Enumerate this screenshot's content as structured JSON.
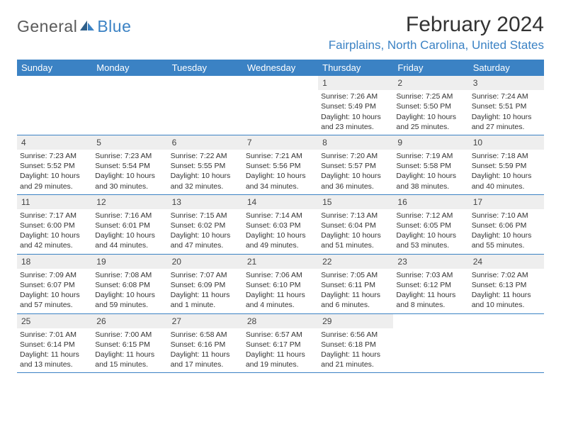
{
  "logo": {
    "general": "General",
    "blue": "Blue"
  },
  "title": "February 2024",
  "location": "Fairplains, North Carolina, United States",
  "colors": {
    "brand_blue": "#3b82c4",
    "logo_gray": "#5a5a5a",
    "header_bg": "#3b82c4",
    "header_text": "#ffffff",
    "daynum_bg": "#eeeeee",
    "text": "#333333",
    "border": "#3b82c4"
  },
  "day_headers": [
    "Sunday",
    "Monday",
    "Tuesday",
    "Wednesday",
    "Thursday",
    "Friday",
    "Saturday"
  ],
  "weeks": [
    [
      {
        "num": "",
        "sunrise": "",
        "sunset": "",
        "daylight": ""
      },
      {
        "num": "",
        "sunrise": "",
        "sunset": "",
        "daylight": ""
      },
      {
        "num": "",
        "sunrise": "",
        "sunset": "",
        "daylight": ""
      },
      {
        "num": "",
        "sunrise": "",
        "sunset": "",
        "daylight": ""
      },
      {
        "num": "1",
        "sunrise": "Sunrise: 7:26 AM",
        "sunset": "Sunset: 5:49 PM",
        "daylight": "Daylight: 10 hours and 23 minutes."
      },
      {
        "num": "2",
        "sunrise": "Sunrise: 7:25 AM",
        "sunset": "Sunset: 5:50 PM",
        "daylight": "Daylight: 10 hours and 25 minutes."
      },
      {
        "num": "3",
        "sunrise": "Sunrise: 7:24 AM",
        "sunset": "Sunset: 5:51 PM",
        "daylight": "Daylight: 10 hours and 27 minutes."
      }
    ],
    [
      {
        "num": "4",
        "sunrise": "Sunrise: 7:23 AM",
        "sunset": "Sunset: 5:52 PM",
        "daylight": "Daylight: 10 hours and 29 minutes."
      },
      {
        "num": "5",
        "sunrise": "Sunrise: 7:23 AM",
        "sunset": "Sunset: 5:54 PM",
        "daylight": "Daylight: 10 hours and 30 minutes."
      },
      {
        "num": "6",
        "sunrise": "Sunrise: 7:22 AM",
        "sunset": "Sunset: 5:55 PM",
        "daylight": "Daylight: 10 hours and 32 minutes."
      },
      {
        "num": "7",
        "sunrise": "Sunrise: 7:21 AM",
        "sunset": "Sunset: 5:56 PM",
        "daylight": "Daylight: 10 hours and 34 minutes."
      },
      {
        "num": "8",
        "sunrise": "Sunrise: 7:20 AM",
        "sunset": "Sunset: 5:57 PM",
        "daylight": "Daylight: 10 hours and 36 minutes."
      },
      {
        "num": "9",
        "sunrise": "Sunrise: 7:19 AM",
        "sunset": "Sunset: 5:58 PM",
        "daylight": "Daylight: 10 hours and 38 minutes."
      },
      {
        "num": "10",
        "sunrise": "Sunrise: 7:18 AM",
        "sunset": "Sunset: 5:59 PM",
        "daylight": "Daylight: 10 hours and 40 minutes."
      }
    ],
    [
      {
        "num": "11",
        "sunrise": "Sunrise: 7:17 AM",
        "sunset": "Sunset: 6:00 PM",
        "daylight": "Daylight: 10 hours and 42 minutes."
      },
      {
        "num": "12",
        "sunrise": "Sunrise: 7:16 AM",
        "sunset": "Sunset: 6:01 PM",
        "daylight": "Daylight: 10 hours and 44 minutes."
      },
      {
        "num": "13",
        "sunrise": "Sunrise: 7:15 AM",
        "sunset": "Sunset: 6:02 PM",
        "daylight": "Daylight: 10 hours and 47 minutes."
      },
      {
        "num": "14",
        "sunrise": "Sunrise: 7:14 AM",
        "sunset": "Sunset: 6:03 PM",
        "daylight": "Daylight: 10 hours and 49 minutes."
      },
      {
        "num": "15",
        "sunrise": "Sunrise: 7:13 AM",
        "sunset": "Sunset: 6:04 PM",
        "daylight": "Daylight: 10 hours and 51 minutes."
      },
      {
        "num": "16",
        "sunrise": "Sunrise: 7:12 AM",
        "sunset": "Sunset: 6:05 PM",
        "daylight": "Daylight: 10 hours and 53 minutes."
      },
      {
        "num": "17",
        "sunrise": "Sunrise: 7:10 AM",
        "sunset": "Sunset: 6:06 PM",
        "daylight": "Daylight: 10 hours and 55 minutes."
      }
    ],
    [
      {
        "num": "18",
        "sunrise": "Sunrise: 7:09 AM",
        "sunset": "Sunset: 6:07 PM",
        "daylight": "Daylight: 10 hours and 57 minutes."
      },
      {
        "num": "19",
        "sunrise": "Sunrise: 7:08 AM",
        "sunset": "Sunset: 6:08 PM",
        "daylight": "Daylight: 10 hours and 59 minutes."
      },
      {
        "num": "20",
        "sunrise": "Sunrise: 7:07 AM",
        "sunset": "Sunset: 6:09 PM",
        "daylight": "Daylight: 11 hours and 1 minute."
      },
      {
        "num": "21",
        "sunrise": "Sunrise: 7:06 AM",
        "sunset": "Sunset: 6:10 PM",
        "daylight": "Daylight: 11 hours and 4 minutes."
      },
      {
        "num": "22",
        "sunrise": "Sunrise: 7:05 AM",
        "sunset": "Sunset: 6:11 PM",
        "daylight": "Daylight: 11 hours and 6 minutes."
      },
      {
        "num": "23",
        "sunrise": "Sunrise: 7:03 AM",
        "sunset": "Sunset: 6:12 PM",
        "daylight": "Daylight: 11 hours and 8 minutes."
      },
      {
        "num": "24",
        "sunrise": "Sunrise: 7:02 AM",
        "sunset": "Sunset: 6:13 PM",
        "daylight": "Daylight: 11 hours and 10 minutes."
      }
    ],
    [
      {
        "num": "25",
        "sunrise": "Sunrise: 7:01 AM",
        "sunset": "Sunset: 6:14 PM",
        "daylight": "Daylight: 11 hours and 13 minutes."
      },
      {
        "num": "26",
        "sunrise": "Sunrise: 7:00 AM",
        "sunset": "Sunset: 6:15 PM",
        "daylight": "Daylight: 11 hours and 15 minutes."
      },
      {
        "num": "27",
        "sunrise": "Sunrise: 6:58 AM",
        "sunset": "Sunset: 6:16 PM",
        "daylight": "Daylight: 11 hours and 17 minutes."
      },
      {
        "num": "28",
        "sunrise": "Sunrise: 6:57 AM",
        "sunset": "Sunset: 6:17 PM",
        "daylight": "Daylight: 11 hours and 19 minutes."
      },
      {
        "num": "29",
        "sunrise": "Sunrise: 6:56 AM",
        "sunset": "Sunset: 6:18 PM",
        "daylight": "Daylight: 11 hours and 21 minutes."
      },
      {
        "num": "",
        "sunrise": "",
        "sunset": "",
        "daylight": ""
      },
      {
        "num": "",
        "sunrise": "",
        "sunset": "",
        "daylight": ""
      }
    ]
  ]
}
